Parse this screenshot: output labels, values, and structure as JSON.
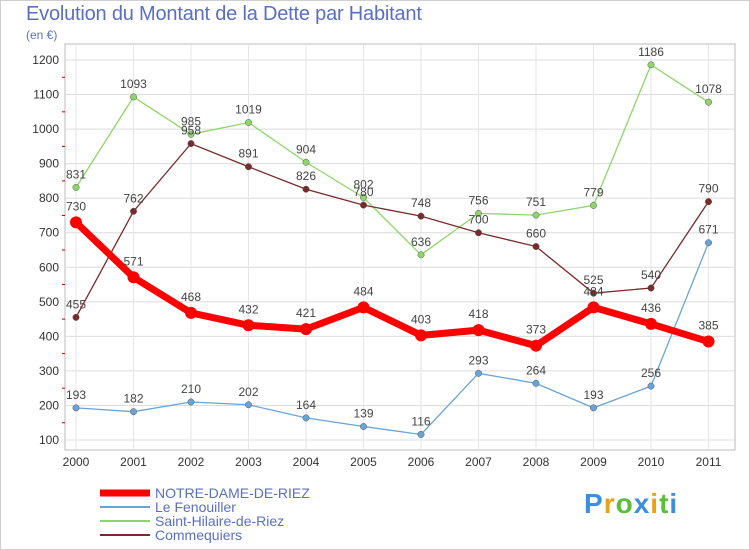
{
  "title": "Evolution du Montant de la Dette par Habitant",
  "unit": "(en €)",
  "logo": "Proxiti",
  "chart_data": {
    "type": "line",
    "title": "Evolution du Montant de la Dette par Habitant",
    "ylabel": "(en €)",
    "xlabel": "",
    "x": [
      "2000",
      "2001",
      "2002",
      "2003",
      "2004",
      "2005",
      "2006",
      "2007",
      "2008",
      "2009",
      "2010",
      "2011"
    ],
    "ylim": [
      100,
      1200
    ],
    "yticks": [
      100,
      200,
      300,
      400,
      500,
      600,
      700,
      800,
      900,
      1000,
      1100,
      1200
    ],
    "grid": true,
    "legend": "bottom-left",
    "series": [
      {
        "name": "NOTRE-DAME-DE-RIEZ",
        "color": "#ff0000",
        "values": [
          730,
          571,
          468,
          432,
          421,
          484,
          403,
          418,
          373,
          484,
          436,
          385
        ]
      },
      {
        "name": "Le Fenouiller",
        "color": "#6aa4d6",
        "values": [
          193,
          182,
          210,
          202,
          164,
          139,
          116,
          293,
          264,
          193,
          256,
          671
        ]
      },
      {
        "name": "Saint-Hilaire-de-Riez",
        "color": "#8fd66a",
        "values": [
          831,
          1093,
          985,
          1019,
          904,
          802,
          636,
          756,
          751,
          779,
          1186,
          1078
        ]
      },
      {
        "name": "Commequiers",
        "color": "#7a2a2a",
        "values": [
          455,
          762,
          958,
          891,
          826,
          780,
          748,
          700,
          660,
          525,
          540,
          790
        ]
      }
    ]
  }
}
